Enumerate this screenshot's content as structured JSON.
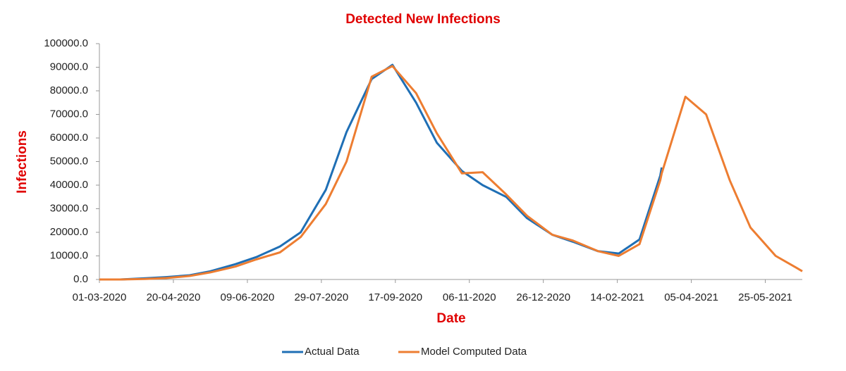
{
  "chart_data": {
    "type": "line",
    "title": "Detected New Infections",
    "x_label": "Date",
    "y_label": "Infections",
    "x": [
      "01-03-2020",
      "15-03-2020",
      "01-04-2020",
      "15-04-2020",
      "01-05-2020",
      "15-05-2020",
      "01-06-2020",
      "15-06-2020",
      "01-07-2020",
      "15-07-2020",
      "01-08-2020",
      "15-08-2020",
      "01-09-2020",
      "15-09-2020",
      "01-10-2020",
      "15-10-2020",
      "01-11-2020",
      "15-11-2020",
      "01-12-2020",
      "15-12-2020",
      "01-01-2021",
      "15-01-2021",
      "01-02-2021",
      "15-02-2021",
      "01-03-2021",
      "15-03-2021",
      "16-03-2021",
      "01-04-2021",
      "15-04-2021",
      "01-05-2021",
      "15-05-2021",
      "01-06-2021",
      "15-06-2021",
      "19-06-2021"
    ],
    "series": [
      {
        "name": "Actual Data",
        "color": "#1f6fb5",
        "values": [
          0,
          0,
          500,
          1000,
          1800,
          3500,
          6500,
          9500,
          14000,
          20000,
          38000,
          62500,
          85000,
          91000,
          75000,
          58000,
          46000,
          40000,
          35000,
          26000,
          19000,
          16000,
          12000,
          11000,
          17000,
          44000,
          47500,
          null,
          null,
          null,
          null,
          null,
          null,
          null
        ]
      },
      {
        "name": "Model Computed Data",
        "color": "#ed7d31",
        "values": [
          0,
          0,
          200,
          600,
          1500,
          3000,
          5500,
          8500,
          11500,
          18000,
          32000,
          50000,
          86000,
          90500,
          79000,
          62000,
          45000,
          45500,
          36000,
          27000,
          19000,
          16500,
          12000,
          10000,
          15000,
          42000,
          45000,
          77500,
          70000,
          42000,
          22000,
          10000,
          5000,
          3500
        ]
      }
    ],
    "xlim": [
      "01-03-2020",
      "19-06-2021"
    ],
    "xticks": [
      "01-03-2020",
      "20-04-2020",
      "09-06-2020",
      "29-07-2020",
      "17-09-2020",
      "06-11-2020",
      "26-12-2020",
      "14-02-2021",
      "05-04-2021",
      "25-05-2021"
    ],
    "ylim": [
      0,
      100000
    ],
    "yticks": [
      {
        "value": 0,
        "label": "0.0"
      },
      {
        "value": 10000,
        "label": "10000.0"
      },
      {
        "value": 20000,
        "label": "20000.0"
      },
      {
        "value": 30000,
        "label": "30000.0"
      },
      {
        "value": 40000,
        "label": "40000.0"
      },
      {
        "value": 50000,
        "label": "50000.0"
      },
      {
        "value": 60000,
        "label": "60000.0"
      },
      {
        "value": 70000,
        "label": "70000.0"
      },
      {
        "value": 80000,
        "label": "80000.0"
      },
      {
        "value": 90000,
        "label": "90000.0"
      },
      {
        "value": 100000,
        "label": "100000.0"
      }
    ],
    "legend": "bottom"
  }
}
